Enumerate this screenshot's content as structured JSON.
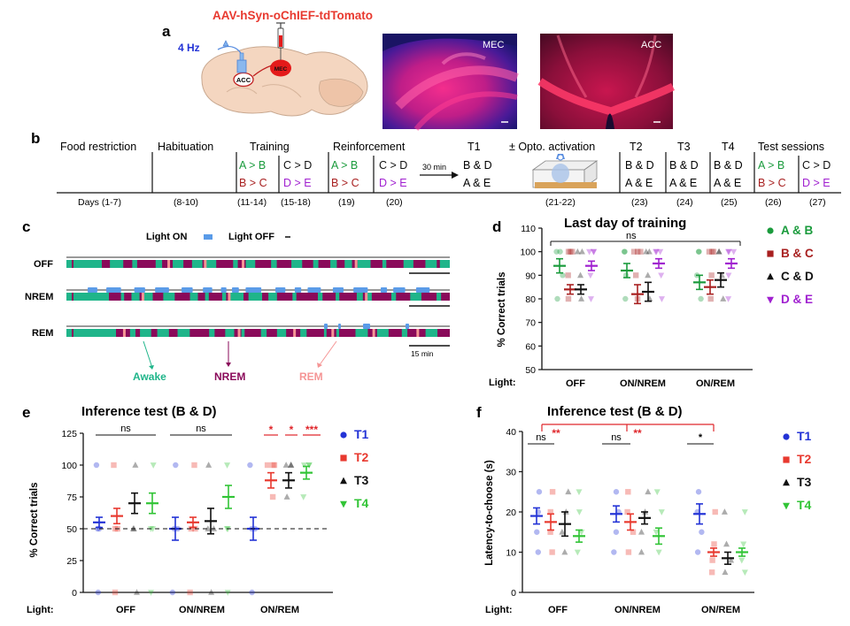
{
  "colors": {
    "green": "#1a9b3c",
    "darkred": "#a82020",
    "purple": "#a020d0",
    "blue": "#2333d6",
    "red": "#e8392f",
    "teal": "#1fb58a",
    "magenta": "#8a0a5a",
    "salmon": "#f59595",
    "lightblue": "#5a9be8",
    "brightgreen": "#31c436",
    "sig": "#e0262b"
  },
  "panelA": {
    "letter": "a",
    "virus": "AAV-hSyn-oChIEF-tdTomato",
    "freq": "4 Hz",
    "acc_label": "ACC",
    "mec_label": "MEC",
    "image1_label": "MEC",
    "image2_label": "ACC"
  },
  "panelB": {
    "letter": "b",
    "phases": [
      {
        "title": "Food restriction",
        "days": "Days (1-7)"
      },
      {
        "title": "Habituation",
        "days": "(8-10)"
      },
      {
        "title": "Training",
        "days": "(11-14)"
      },
      {
        "title": "",
        "days": "(15-18)"
      },
      {
        "title": "Reinforcement",
        "days": "(19)"
      },
      {
        "title": "",
        "days": "(20)"
      },
      {
        "title": "T1",
        "days": ""
      },
      {
        "title": "± Opto. activation",
        "days": "(21-22)"
      },
      {
        "title": "T2",
        "days": "(23)"
      },
      {
        "title": "T3",
        "days": "(24)"
      },
      {
        "title": "T4",
        "days": "(25)"
      },
      {
        "title": "Test sessions",
        "days": "(26)"
      },
      {
        "title": "",
        "days": "(27)"
      }
    ],
    "pairs": {
      "ab": "A > B",
      "bc": "B > C",
      "cd": "C > D",
      "de": "D > E",
      "bd": "B & D",
      "ae": "A & E"
    },
    "arrow_label": "30 min"
  },
  "panelC": {
    "letter": "c",
    "legend_on": "Light ON",
    "legend_off": "Light OFF",
    "rows": [
      "OFF",
      "NREM",
      "REM"
    ],
    "scale": "15 min",
    "states": [
      "Awake",
      "NREM",
      "REM"
    ]
  },
  "panelD": {
    "letter": "d",
    "chart_data": {
      "type": "scatter",
      "title": "Last day of training",
      "ylabel": "% Correct trials",
      "ylim": [
        50,
        110
      ],
      "yticks": [
        50,
        60,
        70,
        80,
        90,
        100,
        110
      ],
      "light_label": "Light:",
      "categories": [
        "OFF",
        "ON/NREM",
        "ON/REM"
      ],
      "sig": "ns",
      "series": [
        {
          "name": "A & B",
          "marker": "circle",
          "means": [
            94,
            92,
            87
          ],
          "sems": [
            3,
            3,
            3
          ]
        },
        {
          "name": "B & C",
          "marker": "square",
          "means": [
            84,
            82,
            85
          ],
          "sems": [
            2,
            4,
            3
          ]
        },
        {
          "name": "C & D",
          "marker": "triangle-up",
          "means": [
            84,
            83,
            88
          ],
          "sems": [
            2,
            4,
            3
          ]
        },
        {
          "name": "D & E",
          "marker": "triangle-down",
          "means": [
            94,
            95,
            95
          ],
          "sems": [
            2,
            2,
            2
          ]
        }
      ]
    }
  },
  "panelE": {
    "letter": "e",
    "chart_data": {
      "type": "scatter",
      "title": "Inference test (B & D)",
      "ylabel": "% Correct trials",
      "ylim": [
        0,
        125
      ],
      "yticks": [
        0,
        25,
        50,
        75,
        100,
        125
      ],
      "chance": 50,
      "light_label": "Light:",
      "categories": [
        "OFF",
        "ON/NREM",
        "ON/REM"
      ],
      "sig_labels": [
        "ns",
        "ns"
      ],
      "sig_rem": [
        "*",
        "*",
        "***"
      ],
      "series": [
        {
          "name": "T1",
          "marker": "circle",
          "means": [
            55,
            50,
            50
          ],
          "sems": [
            4,
            9,
            9
          ]
        },
        {
          "name": "T2",
          "marker": "square",
          "means": [
            60,
            55,
            88
          ],
          "sems": [
            6,
            4,
            6
          ]
        },
        {
          "name": "T3",
          "marker": "triangle-up",
          "means": [
            70,
            56,
            88
          ],
          "sems": [
            8,
            10,
            6
          ]
        },
        {
          "name": "T4",
          "marker": "triangle-down",
          "means": [
            70,
            75,
            94
          ],
          "sems": [
            8,
            9,
            5
          ]
        }
      ]
    }
  },
  "panelF": {
    "letter": "f",
    "chart_data": {
      "type": "scatter",
      "title": "Inference test (B & D)",
      "ylabel": "Latency-to-choose (s)",
      "ylim": [
        0,
        40
      ],
      "yticks": [
        0,
        10,
        20,
        30,
        40
      ],
      "light_label": "Light:",
      "categories": [
        "OFF",
        "ON/NREM",
        "ON/REM"
      ],
      "sig_labels": [
        "ns",
        "ns",
        "*"
      ],
      "sig_top": [
        "**",
        "**"
      ],
      "series": [
        {
          "name": "T1",
          "marker": "circle",
          "means": [
            19,
            19.5,
            19.5
          ],
          "sems": [
            2,
            2,
            2.5
          ]
        },
        {
          "name": "T2",
          "marker": "square",
          "means": [
            17.5,
            17.5,
            10
          ],
          "sems": [
            2,
            2,
            1
          ]
        },
        {
          "name": "T3",
          "marker": "triangle-up",
          "means": [
            17,
            18.5,
            8.5
          ],
          "sems": [
            3,
            1.5,
            1.5
          ]
        },
        {
          "name": "T4",
          "marker": "triangle-down",
          "means": [
            14,
            14,
            10
          ],
          "sems": [
            1.5,
            2,
            1
          ]
        }
      ]
    }
  }
}
